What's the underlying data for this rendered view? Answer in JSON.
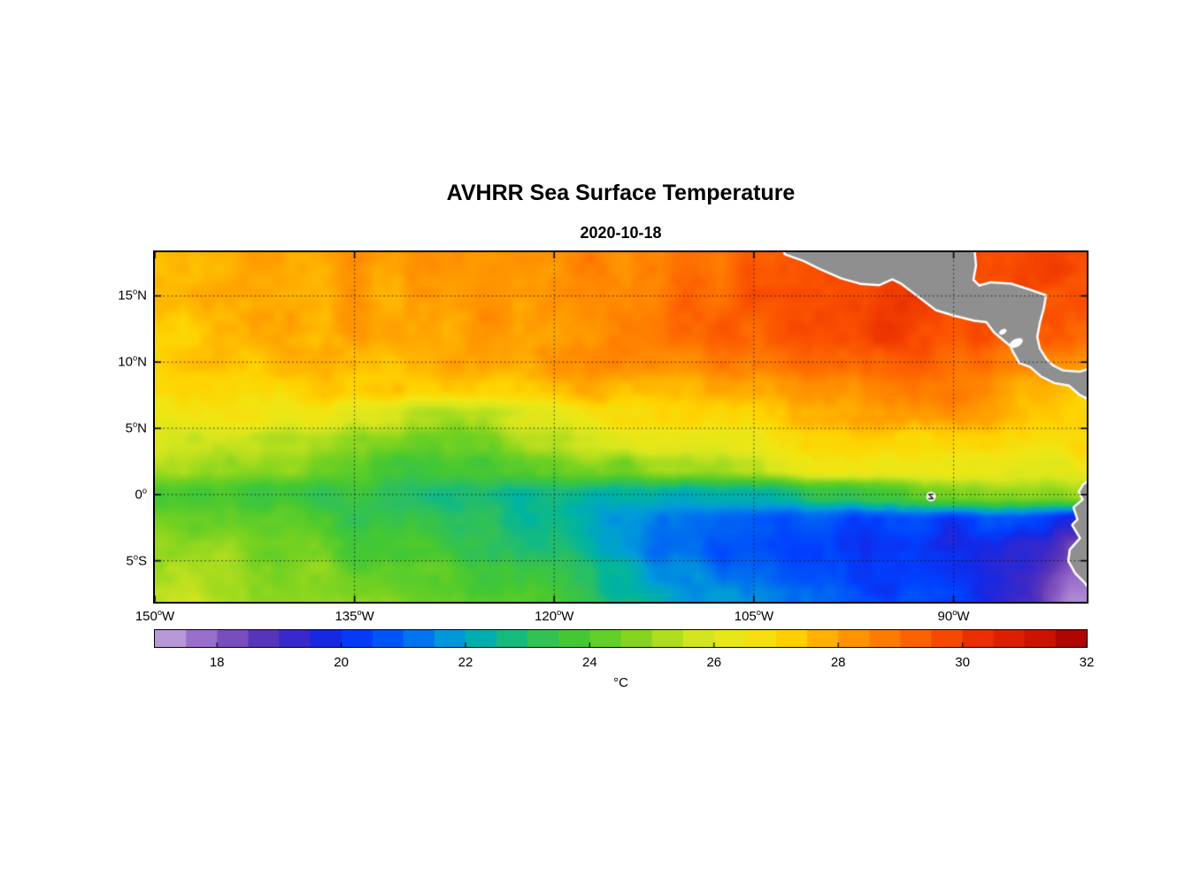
{
  "header": {
    "title": "AVHRR Sea Surface Temperature",
    "subtitle": "2020-10-18"
  },
  "colorbar": {
    "label": "°C",
    "orientation": "horizontal",
    "range": [
      17,
      32
    ],
    "segment_step_c": 0.5,
    "ticks": [
      18,
      20,
      22,
      24,
      26,
      28,
      30,
      32
    ]
  },
  "chart_data": {
    "type": "heatmap",
    "title": "AVHRR Sea Surface Temperature",
    "date": "2020-10-18",
    "units": "°C",
    "grid": "dotted",
    "lon_range": [
      -150,
      -80
    ],
    "lat_range": [
      -8.1,
      18.3
    ],
    "x_ticks": [
      {
        "label": "150",
        "hemi": "W",
        "lon": -150
      },
      {
        "label": "135",
        "hemi": "W",
        "lon": -135
      },
      {
        "label": "120",
        "hemi": "W",
        "lon": -120
      },
      {
        "label": "105",
        "hemi": "W",
        "lon": -105
      },
      {
        "label": "90",
        "hemi": "W",
        "lon": -90
      }
    ],
    "y_ticks": [
      {
        "label": "15",
        "hemi": "N",
        "lat": 15
      },
      {
        "label": "10",
        "hemi": "N",
        "lat": 10
      },
      {
        "label": "5",
        "hemi": "N",
        "lat": 5
      },
      {
        "label": "0",
        "hemi": "",
        "lat": 0
      },
      {
        "label": "5",
        "hemi": "S",
        "lat": -5
      }
    ],
    "sst_grid": {
      "lons": [
        -150,
        -145,
        -140,
        -135,
        -130,
        -125,
        -120,
        -115,
        -110,
        -105,
        -100,
        -95,
        -90,
        -85,
        -80
      ],
      "lats": [
        18,
        16,
        14,
        12,
        10,
        8,
        6,
        4,
        2,
        0,
        -2,
        -4,
        -6,
        -8
      ],
      "values_c": [
        [
          27.8,
          27.9,
          28.0,
          28.1,
          28.2,
          28.3,
          28.4,
          28.6,
          28.8,
          29.2,
          29.6,
          29.8,
          29.9,
          29.8,
          29.7
        ],
        [
          27.6,
          27.7,
          27.9,
          28.0,
          28.1,
          28.2,
          28.4,
          28.6,
          28.9,
          29.3,
          29.7,
          29.9,
          29.9,
          29.8,
          29.7
        ],
        [
          27.5,
          27.6,
          27.8,
          27.9,
          28.0,
          28.1,
          28.3,
          28.6,
          29.0,
          29.4,
          29.8,
          30.0,
          29.6,
          29.5,
          29.6
        ],
        [
          27.3,
          27.5,
          27.6,
          27.8,
          27.9,
          28.0,
          28.2,
          28.5,
          28.9,
          29.3,
          29.6,
          29.8,
          29.5,
          29.3,
          29.4
        ],
        [
          27.2,
          27.3,
          27.5,
          27.6,
          27.7,
          27.9,
          28.0,
          28.2,
          28.5,
          28.8,
          29.0,
          29.3,
          29.2,
          28.8,
          28.6
        ],
        [
          27.0,
          27.1,
          27.2,
          27.3,
          27.4,
          27.5,
          27.6,
          27.7,
          27.8,
          28.0,
          28.3,
          28.6,
          28.5,
          28.0,
          27.6
        ],
        [
          26.6,
          26.7,
          26.6,
          26.0,
          25.3,
          25.5,
          26.2,
          26.9,
          27.1,
          27.3,
          27.6,
          28.0,
          28.2,
          27.6,
          27.2
        ],
        [
          26.0,
          25.6,
          25.2,
          24.8,
          24.4,
          24.7,
          25.4,
          26.0,
          26.3,
          26.6,
          26.8,
          27.0,
          27.2,
          27.0,
          26.8
        ],
        [
          25.2,
          25.0,
          24.6,
          24.2,
          23.8,
          24.0,
          24.3,
          24.6,
          25.2,
          25.6,
          26.2,
          26.5,
          26.6,
          26.4,
          26.2
        ],
        [
          24.0,
          23.8,
          23.5,
          23.2,
          22.8,
          22.6,
          22.7,
          22.4,
          22.3,
          22.5,
          23.0,
          23.8,
          24.3,
          24.8,
          25.0
        ],
        [
          24.6,
          24.3,
          24.0,
          23.6,
          23.2,
          22.8,
          22.4,
          21.8,
          21.2,
          20.8,
          20.6,
          20.4,
          20.2,
          20.6,
          19.0
        ],
        [
          25.0,
          24.8,
          24.4,
          24.0,
          23.6,
          23.2,
          22.6,
          21.8,
          21.0,
          20.6,
          20.3,
          20.0,
          19.8,
          19.6,
          18.2
        ],
        [
          25.3,
          25.1,
          24.8,
          24.4,
          24.2,
          23.8,
          23.2,
          22.4,
          21.6,
          21.0,
          20.6,
          20.2,
          19.9,
          19.4,
          17.8
        ],
        [
          25.5,
          25.3,
          25.0,
          24.8,
          24.5,
          24.2,
          23.6,
          22.8,
          22.0,
          21.4,
          21.0,
          20.6,
          20.2,
          19.2,
          17.4
        ]
      ]
    },
    "colormap_stops": [
      [
        17.0,
        "#C6ADE0"
      ],
      [
        17.5,
        "#A882D2"
      ],
      [
        18.0,
        "#8A5CC4"
      ],
      [
        18.6,
        "#6038B4"
      ],
      [
        19.2,
        "#3C28C8"
      ],
      [
        19.8,
        "#1428E6"
      ],
      [
        20.4,
        "#0040FF"
      ],
      [
        21.2,
        "#0070F0"
      ],
      [
        21.8,
        "#009CD8"
      ],
      [
        22.4,
        "#00B4A0"
      ],
      [
        23.0,
        "#28BE64"
      ],
      [
        23.8,
        "#46C832"
      ],
      [
        24.6,
        "#78D220"
      ],
      [
        25.2,
        "#AADC1E"
      ],
      [
        25.8,
        "#D7E61E"
      ],
      [
        26.5,
        "#F0E614"
      ],
      [
        27.2,
        "#FFD200"
      ],
      [
        28.0,
        "#FFA000"
      ],
      [
        28.8,
        "#FF7800"
      ],
      [
        29.6,
        "#FA5000"
      ],
      [
        30.4,
        "#E62800"
      ],
      [
        31.2,
        "#CD1400"
      ],
      [
        32.0,
        "#A00000"
      ]
    ],
    "land": {
      "fill_color": "#8F8F8F",
      "coast_color": "#FFFFFF",
      "polygons": {
        "central_america": [
          [
            -103.0,
            19.0
          ],
          [
            -102.6,
            18.2
          ],
          [
            -101.2,
            17.7
          ],
          [
            -100.0,
            17.1
          ],
          [
            -98.4,
            16.4
          ],
          [
            -97.0,
            16.0
          ],
          [
            -95.6,
            15.9
          ],
          [
            -94.6,
            16.35
          ],
          [
            -93.9,
            16.0
          ],
          [
            -92.6,
            15.0
          ],
          [
            -91.3,
            14.0
          ],
          [
            -90.0,
            13.6
          ],
          [
            -88.4,
            13.2
          ],
          [
            -87.5,
            13.1
          ],
          [
            -86.9,
            12.3
          ],
          [
            -86.3,
            11.8
          ],
          [
            -85.7,
            11.3
          ],
          [
            -85.4,
            10.7
          ],
          [
            -85.0,
            10.0
          ],
          [
            -84.2,
            9.7
          ],
          [
            -83.4,
            9.0
          ],
          [
            -82.4,
            8.5
          ],
          [
            -81.3,
            8.3
          ],
          [
            -80.5,
            7.6
          ],
          [
            -79.9,
            7.3
          ],
          [
            -79.3,
            8.0
          ],
          [
            -79.0,
            8.8
          ],
          [
            -79.2,
            9.6
          ],
          [
            -80.5,
            9.2
          ],
          [
            -81.8,
            9.3
          ],
          [
            -82.6,
            9.7
          ],
          [
            -83.1,
            10.2
          ],
          [
            -83.6,
            11.0
          ],
          [
            -83.8,
            11.9
          ],
          [
            -83.6,
            13.0
          ],
          [
            -83.3,
            14.1
          ],
          [
            -83.15,
            15.0
          ],
          [
            -84.3,
            15.4
          ],
          [
            -85.7,
            15.85
          ],
          [
            -87.2,
            15.95
          ],
          [
            -88.1,
            15.7
          ],
          [
            -88.6,
            16.2
          ],
          [
            -88.4,
            17.3
          ],
          [
            -88.5,
            18.4
          ],
          [
            -88.8,
            19.0
          ]
        ],
        "south_america": [
          [
            -77.5,
            1.5
          ],
          [
            -79.7,
            1.1
          ],
          [
            -80.2,
            0.7
          ],
          [
            -80.5,
            0.2
          ],
          [
            -80.2,
            -0.4
          ],
          [
            -80.9,
            -1.0
          ],
          [
            -80.6,
            -1.9
          ],
          [
            -81.0,
            -2.3
          ],
          [
            -80.4,
            -3.3
          ],
          [
            -81.2,
            -4.2
          ],
          [
            -81.3,
            -5.0
          ],
          [
            -80.8,
            -5.9
          ],
          [
            -80.1,
            -6.6
          ],
          [
            -79.5,
            -7.4
          ],
          [
            -79.1,
            -8.5
          ],
          [
            -77.5,
            -8.5
          ]
        ]
      },
      "lakes": [
        {
          "name": "lake-nicaragua",
          "lon": -85.3,
          "lat": 11.45,
          "rx": 0.55,
          "ry": 0.3
        },
        {
          "name": "lake-managua",
          "lon": -86.3,
          "lat": 12.3,
          "rx": 0.3,
          "ry": 0.18
        }
      ]
    },
    "features": {
      "galapagos": {
        "lon": -91.7,
        "lat": -0.15
      }
    }
  }
}
